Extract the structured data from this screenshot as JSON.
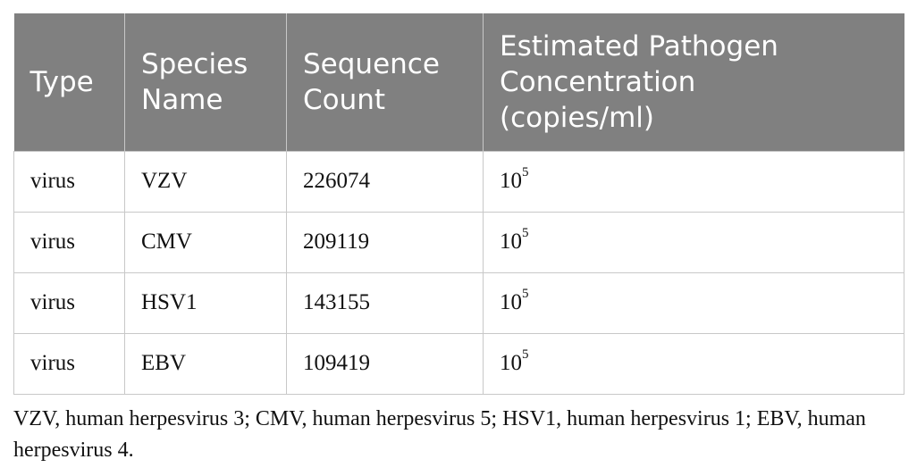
{
  "table": {
    "headers": [
      {
        "lines": [
          "Type"
        ]
      },
      {
        "lines": [
          "Species",
          "Name"
        ]
      },
      {
        "lines": [
          "Sequence",
          "Count"
        ]
      },
      {
        "lines": [
          "Estimated Pathogen",
          "Concentration",
          "(copies/ml)"
        ]
      }
    ],
    "rows": [
      {
        "type": "virus",
        "species": "VZV",
        "count": "226074",
        "conc_base": "10",
        "conc_exp": "5"
      },
      {
        "type": "virus",
        "species": "CMV",
        "count": "209119",
        "conc_base": "10",
        "conc_exp": "5"
      },
      {
        "type": "virus",
        "species": "HSV1",
        "count": "143155",
        "conc_base": "10",
        "conc_exp": "5"
      },
      {
        "type": "virus",
        "species": "EBV",
        "count": "109419",
        "conc_base": "10",
        "conc_exp": "5"
      }
    ]
  },
  "footnote": "VZV, human herpesvirus 3; CMV, human herpesvirus 5; HSV1, human herpesvirus 1; EBV, human herpesvirus 4.",
  "colors": {
    "header_bg": "#808080",
    "header_text": "#ffffff",
    "border": "#c8c8c8"
  }
}
